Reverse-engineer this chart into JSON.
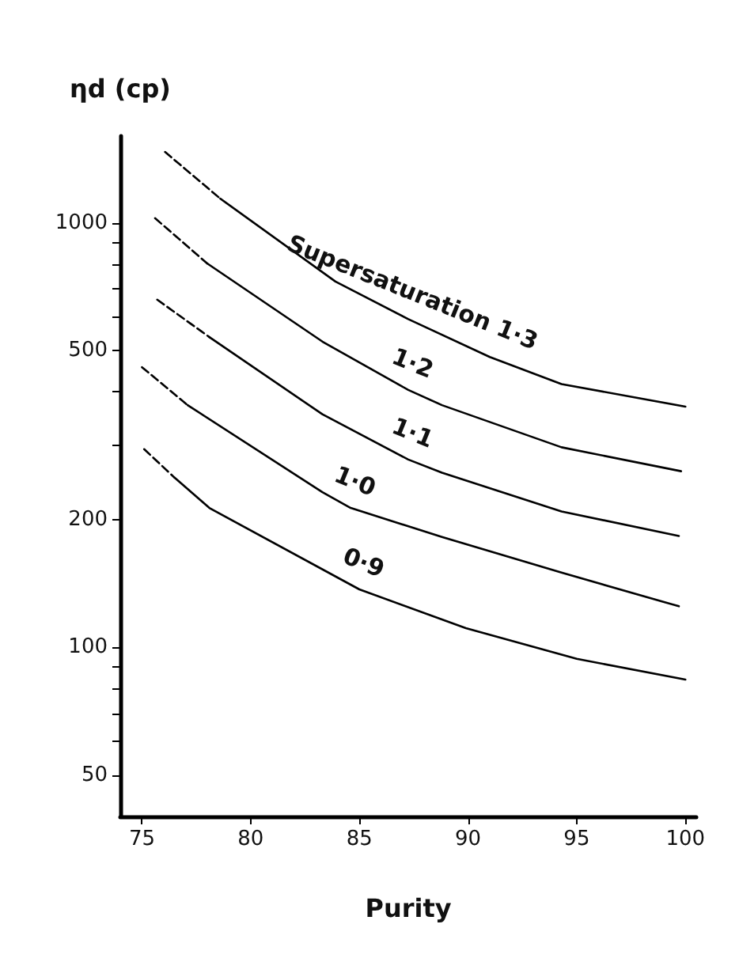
{
  "chart_data": {
    "type": "line",
    "xlabel": "Purity",
    "ylabel": "ηd (cp)",
    "xlim": [
      74,
      100.5
    ],
    "xticks": [
      75,
      80,
      85,
      90,
      95,
      100
    ],
    "ylim": [
      40,
      1600
    ],
    "yticks": [
      50,
      {
        "value": 60,
        "label": null
      },
      {
        "value": 70,
        "label": null
      },
      {
        "value": 80,
        "label": null
      },
      {
        "value": 90,
        "label": null
      },
      100,
      200,
      {
        "value": 300,
        "label": null
      },
      {
        "value": 400,
        "label": null
      },
      500,
      {
        "value": 600,
        "label": null
      },
      {
        "value": 700,
        "label": null
      },
      {
        "value": 800,
        "label": null
      },
      {
        "value": 900,
        "label": null
      },
      1000
    ],
    "log": "y",
    "grid": false,
    "legend": false,
    "marker": "none",
    "series": [
      {
        "color": "#000000",
        "line_style": "dashed",
        "x": [
          76.06,
          78.6
        ],
        "values": [
          1468,
          1140
        ]
      },
      {
        "name": "Supersaturation 1·3",
        "color": "#000000",
        "line_style": "solid",
        "x": [
          78.6,
          83.9,
          87.25,
          91.0,
          94.3,
          100
        ],
        "values": [
          1140,
          727,
          593,
          483,
          417,
          369
        ]
      },
      {
        "color": "#000000",
        "line_style": "dashed",
        "x": [
          75.6,
          78.0
        ],
        "values": [
          1025,
          802
        ]
      },
      {
        "name": "1·2",
        "color": "#000000",
        "line_style": "solid",
        "x": [
          78.0,
          83.3,
          87.25,
          88.8,
          94.3,
          99.8
        ],
        "values": [
          802,
          525,
          404,
          372,
          296,
          260
        ]
      },
      {
        "color": "#000000",
        "line_style": "dashed",
        "x": [
          75.7,
          78.1
        ],
        "values": [
          659,
          538
        ]
      },
      {
        "name": "1·1",
        "color": "#000000",
        "line_style": "solid",
        "x": [
          78.1,
          83.3,
          87.25,
          88.8,
          94.3,
          99.7
        ],
        "values": [
          538,
          354,
          277,
          258,
          209,
          183
        ]
      },
      {
        "color": "#000000",
        "line_style": "dashed",
        "x": [
          75.0,
          77.1
        ],
        "values": [
          457,
          372
        ]
      },
      {
        "name": "1·0",
        "color": "#000000",
        "line_style": "solid",
        "x": [
          77.1,
          83.3,
          84.6,
          88.8,
          94.3,
          99.7
        ],
        "values": [
          372,
          232,
          213,
          182,
          150,
          125
        ]
      },
      {
        "color": "#000000",
        "line_style": "dashed",
        "x": [
          75.1,
          76.5
        ],
        "values": [
          293,
          251
        ]
      },
      {
        "name": "0·9",
        "color": "#000000",
        "line_style": "solid",
        "x": [
          76.5,
          78.1,
          85.0,
          89.9,
          95.0,
          100
        ],
        "values": [
          251,
          213,
          137,
          111,
          94,
          84
        ]
      }
    ]
  }
}
